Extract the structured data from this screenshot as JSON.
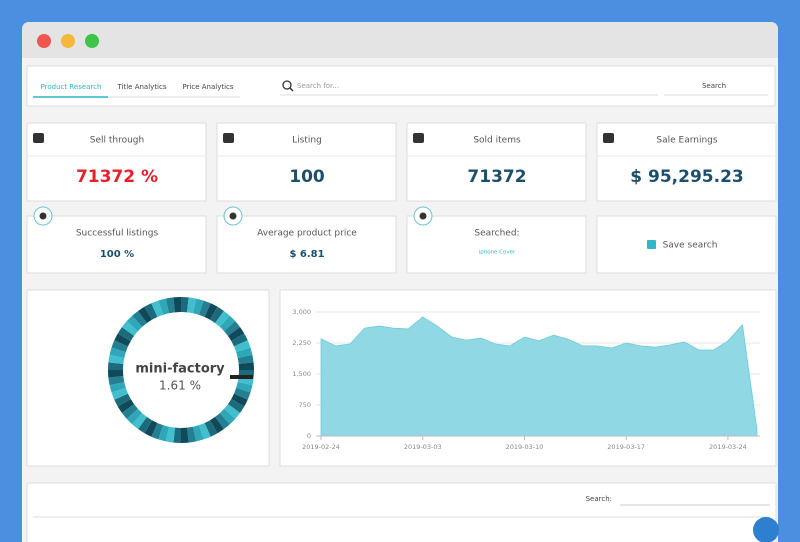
{
  "tabs": [
    "Product Research",
    "Title Analytics",
    "Price Analytics"
  ],
  "search": {
    "placeholder": "Search for...",
    "button": "Search"
  },
  "stats": [
    {
      "title": "Sell through",
      "value": "71372 %",
      "color": "#e8202a"
    },
    {
      "title": "Listing",
      "value": "100",
      "color": "#1d4f6a"
    },
    {
      "title": "Sold items",
      "value": "71372",
      "color": "#1d4f6a"
    },
    {
      "title": "Sale Earnings",
      "value": "$ 95,295.23",
      "color": "#1d4f6a"
    }
  ],
  "stats2": [
    {
      "title": "Successful listings",
      "value": "100 %"
    },
    {
      "title": "Average product price",
      "value": "$ 6.81"
    },
    {
      "title": "Searched:",
      "value": "iphone Cover"
    }
  ],
  "save_button": "Save search",
  "donut": {
    "label": "mini-factory",
    "value": "1.61 %"
  },
  "chart_data": {
    "type": "area",
    "color": "#8fd8e4",
    "x": [
      "2019-02-24",
      "2019-02-25",
      "2019-02-26",
      "2019-02-27",
      "2019-02-28",
      "2019-03-01",
      "2019-03-02",
      "2019-03-03",
      "2019-03-04",
      "2019-03-05",
      "2019-03-06",
      "2019-03-07",
      "2019-03-08",
      "2019-03-09",
      "2019-03-10",
      "2019-03-11",
      "2019-03-12",
      "2019-03-13",
      "2019-03-14",
      "2019-03-15",
      "2019-03-16",
      "2019-03-17",
      "2019-03-18",
      "2019-03-19",
      "2019-03-20",
      "2019-03-21",
      "2019-03-22",
      "2019-03-23",
      "2019-03-24",
      "2019-03-25",
      "2019-03-26"
    ],
    "values": [
      2350,
      2180,
      2225,
      2610,
      2660,
      2610,
      2590,
      2880,
      2660,
      2395,
      2320,
      2370,
      2225,
      2180,
      2395,
      2300,
      2440,
      2345,
      2180,
      2180,
      2130,
      2250,
      2180,
      2150,
      2200,
      2275,
      2080,
      2080,
      2300,
      2690,
      150
    ],
    "xlim": [
      "2019-02-24",
      "2019-03-26"
    ],
    "xticks": [
      "2019-02-24",
      "2019-03-03",
      "2019-03-10",
      "2019-03-17",
      "2019-03-24"
    ],
    "ylim": [
      0,
      3000
    ],
    "yticks": [
      0,
      750,
      {
        "value": 1500,
        "label": "1,500"
      },
      {
        "value": 2250,
        "label": "2,250"
      },
      {
        "value": 3000,
        "label": "3,000"
      }
    ],
    "grid": true
  },
  "table": {
    "search_label": "Search:"
  }
}
